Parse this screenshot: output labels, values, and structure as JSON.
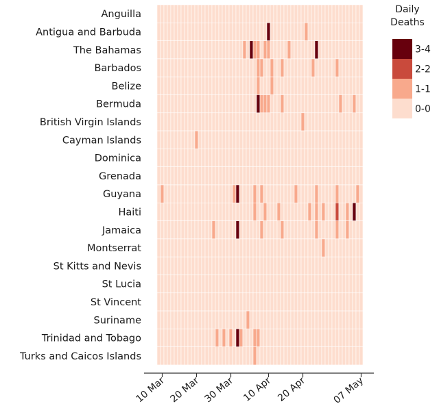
{
  "chart_data": {
    "type": "heatmap",
    "title": "",
    "xlabel": "",
    "ylabel": "",
    "x_start": "2020-03-09",
    "x_end": "2020-05-07",
    "x_ticks": [
      "10 Mar",
      "20 Mar",
      "30 Mar",
      "10 Apr",
      "20 Apr",
      "07 May"
    ],
    "x_tick_dates": [
      "2020-03-10",
      "2020-03-20",
      "2020-03-30",
      "2020-04-10",
      "2020-04-20",
      "2020-05-07"
    ],
    "countries": [
      "Anguilla",
      "Antigua and Barbuda",
      "The Bahamas",
      "Barbados",
      "Belize",
      "Bermuda",
      "British Virgin Islands",
      "Cayman Islands",
      "Dominica",
      "Grenada",
      "Guyana",
      "Haiti",
      "Jamaica",
      "Montserrat",
      "St Kitts and Nevis",
      "St Lucia",
      "St Vincent",
      "Suriname",
      "Trinidad and Tobago",
      "Turks and Caicos Islands"
    ],
    "legend": {
      "title_line1": "Daily",
      "title_line2": "Deaths",
      "bins": [
        {
          "label": "3-4",
          "color": "#67000d"
        },
        {
          "label": "2-2",
          "color": "#c94a3c"
        },
        {
          "label": "1-1",
          "color": "#f8a98c"
        },
        {
          "label": "0-0",
          "color": "#fdddce"
        }
      ],
      "placement": "right"
    },
    "deaths": [
      {
        "country": "Antigua and Barbuda",
        "date": "2020-04-10",
        "value": 3
      },
      {
        "country": "Antigua and Barbuda",
        "date": "2020-04-21",
        "value": 1
      },
      {
        "country": "The Bahamas",
        "date": "2020-04-03",
        "value": 1
      },
      {
        "country": "The Bahamas",
        "date": "2020-04-05",
        "value": 3
      },
      {
        "country": "The Bahamas",
        "date": "2020-04-06",
        "value": 1
      },
      {
        "country": "The Bahamas",
        "date": "2020-04-07",
        "value": 1
      },
      {
        "country": "The Bahamas",
        "date": "2020-04-09",
        "value": 1
      },
      {
        "country": "The Bahamas",
        "date": "2020-04-10",
        "value": 1
      },
      {
        "country": "The Bahamas",
        "date": "2020-04-16",
        "value": 1
      },
      {
        "country": "The Bahamas",
        "date": "2020-04-24",
        "value": 3
      },
      {
        "country": "Barbados",
        "date": "2020-04-07",
        "value": 1
      },
      {
        "country": "Barbados",
        "date": "2020-04-08",
        "value": 1
      },
      {
        "country": "Barbados",
        "date": "2020-04-11",
        "value": 1
      },
      {
        "country": "Barbados",
        "date": "2020-04-14",
        "value": 1
      },
      {
        "country": "Barbados",
        "date": "2020-04-23",
        "value": 1
      },
      {
        "country": "Barbados",
        "date": "2020-04-30",
        "value": 1
      },
      {
        "country": "Belize",
        "date": "2020-04-07",
        "value": 1
      },
      {
        "country": "Belize",
        "date": "2020-04-11",
        "value": 1
      },
      {
        "country": "Bermuda",
        "date": "2020-04-07",
        "value": 3
      },
      {
        "country": "Bermuda",
        "date": "2020-04-08",
        "value": 1
      },
      {
        "country": "Bermuda",
        "date": "2020-04-09",
        "value": 1
      },
      {
        "country": "Bermuda",
        "date": "2020-04-10",
        "value": 1
      },
      {
        "country": "Bermuda",
        "date": "2020-04-14",
        "value": 1
      },
      {
        "country": "Bermuda",
        "date": "2020-05-01",
        "value": 1
      },
      {
        "country": "Bermuda",
        "date": "2020-05-05",
        "value": 1
      },
      {
        "country": "British Virgin Islands",
        "date": "2020-04-20",
        "value": 1
      },
      {
        "country": "Cayman Islands",
        "date": "2020-03-20",
        "value": 1
      },
      {
        "country": "Guyana",
        "date": "2020-03-10",
        "value": 1
      },
      {
        "country": "Guyana",
        "date": "2020-03-31",
        "value": 1
      },
      {
        "country": "Guyana",
        "date": "2020-04-01",
        "value": 3
      },
      {
        "country": "Guyana",
        "date": "2020-04-06",
        "value": 1
      },
      {
        "country": "Guyana",
        "date": "2020-04-08",
        "value": 1
      },
      {
        "country": "Guyana",
        "date": "2020-04-18",
        "value": 1
      },
      {
        "country": "Guyana",
        "date": "2020-04-24",
        "value": 1
      },
      {
        "country": "Guyana",
        "date": "2020-04-30",
        "value": 1
      },
      {
        "country": "Guyana",
        "date": "2020-05-06",
        "value": 1
      },
      {
        "country": "Haiti",
        "date": "2020-04-06",
        "value": 1
      },
      {
        "country": "Haiti",
        "date": "2020-04-09",
        "value": 1
      },
      {
        "country": "Haiti",
        "date": "2020-04-13",
        "value": 1
      },
      {
        "country": "Haiti",
        "date": "2020-04-22",
        "value": 1
      },
      {
        "country": "Haiti",
        "date": "2020-04-24",
        "value": 1
      },
      {
        "country": "Haiti",
        "date": "2020-04-26",
        "value": 1
      },
      {
        "country": "Haiti",
        "date": "2020-04-30",
        "value": 2
      },
      {
        "country": "Haiti",
        "date": "2020-05-03",
        "value": 1
      },
      {
        "country": "Haiti",
        "date": "2020-05-05",
        "value": 4
      },
      {
        "country": "Jamaica",
        "date": "2020-03-25",
        "value": 1
      },
      {
        "country": "Jamaica",
        "date": "2020-04-01",
        "value": 3
      },
      {
        "country": "Jamaica",
        "date": "2020-04-08",
        "value": 1
      },
      {
        "country": "Jamaica",
        "date": "2020-04-14",
        "value": 1
      },
      {
        "country": "Jamaica",
        "date": "2020-04-24",
        "value": 1
      },
      {
        "country": "Jamaica",
        "date": "2020-04-30",
        "value": 1
      },
      {
        "country": "Jamaica",
        "date": "2020-05-03",
        "value": 1
      },
      {
        "country": "Montserrat",
        "date": "2020-04-26",
        "value": 1
      },
      {
        "country": "Suriname",
        "date": "2020-04-04",
        "value": 1
      },
      {
        "country": "Trinidad and Tobago",
        "date": "2020-03-26",
        "value": 1
      },
      {
        "country": "Trinidad and Tobago",
        "date": "2020-03-28",
        "value": 1
      },
      {
        "country": "Trinidad and Tobago",
        "date": "2020-03-30",
        "value": 1
      },
      {
        "country": "Trinidad and Tobago",
        "date": "2020-04-01",
        "value": 3
      },
      {
        "country": "Trinidad and Tobago",
        "date": "2020-04-02",
        "value": 1
      },
      {
        "country": "Trinidad and Tobago",
        "date": "2020-04-06",
        "value": 1
      },
      {
        "country": "Trinidad and Tobago",
        "date": "2020-04-07",
        "value": 1
      },
      {
        "country": "Turks and Caicos Islands",
        "date": "2020-04-06",
        "value": 1
      }
    ]
  }
}
